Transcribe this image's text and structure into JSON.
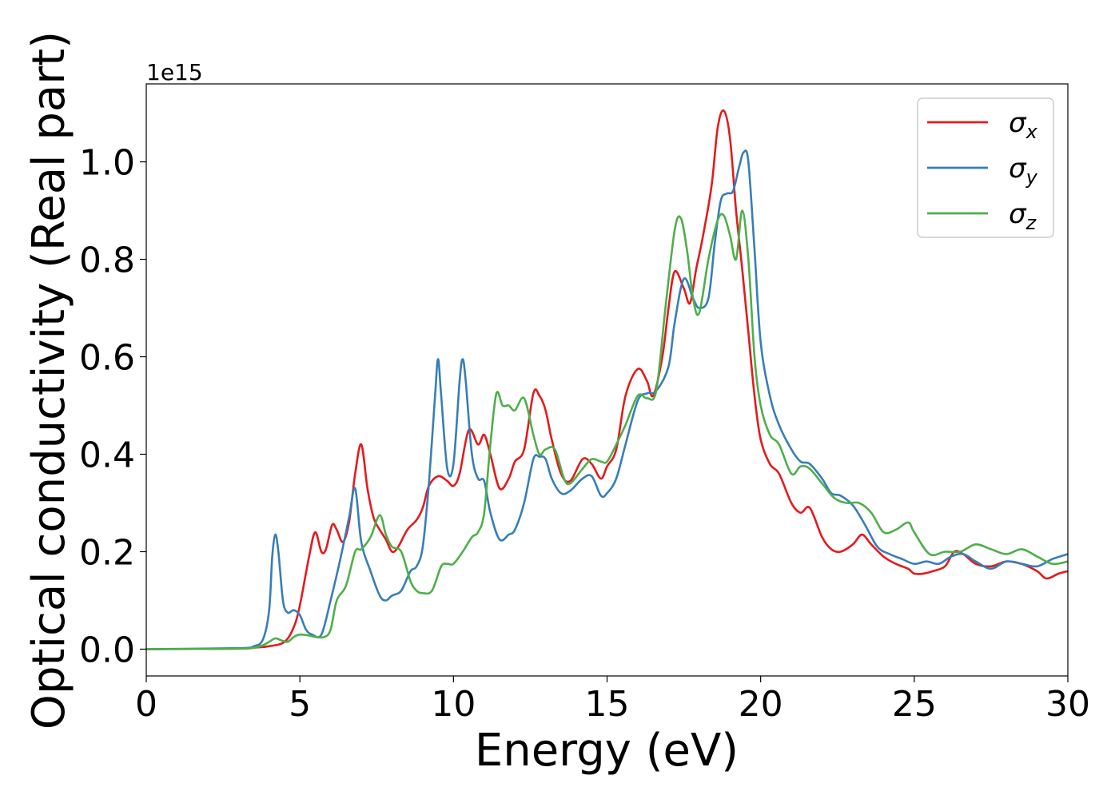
{
  "chart_data": {
    "type": "line",
    "title": "",
    "xlabel": "Energy (eV)",
    "ylabel": "Optical conductivity (Real part)",
    "y_offset_label": "1e15",
    "xlim": [
      0,
      30
    ],
    "ylim": [
      -0.055,
      1.16
    ],
    "xticks": [
      0,
      5,
      10,
      15,
      20,
      25,
      30
    ],
    "xtick_labels": [
      "0",
      "5",
      "10",
      "15",
      "20",
      "25",
      "30"
    ],
    "yticks": [
      0.0,
      0.2,
      0.4,
      0.6,
      0.8,
      1.0
    ],
    "ytick_labels": [
      "0.0",
      "0.2",
      "0.4",
      "0.6",
      "0.8",
      "1.0"
    ],
    "grid": false,
    "legend_position": "top-right",
    "series": [
      {
        "name": "σx",
        "symbol": "σ",
        "subscript": "x",
        "color": "#e41a1c",
        "x": [
          0,
          3.0,
          3.5,
          4.0,
          4.5,
          4.8,
          5.0,
          5.3,
          5.5,
          5.7,
          5.85,
          6.05,
          6.2,
          6.4,
          6.6,
          6.8,
          7.0,
          7.2,
          7.4,
          7.6,
          7.8,
          8.0,
          8.2,
          8.5,
          8.8,
          9.0,
          9.2,
          9.5,
          9.8,
          10.0,
          10.2,
          10.5,
          10.8,
          11.0,
          11.2,
          11.5,
          11.8,
          12.0,
          12.3,
          12.6,
          12.8,
          13.0,
          13.2,
          13.5,
          13.8,
          14.2,
          14.5,
          14.8,
          15.0,
          15.3,
          15.6,
          16.0,
          16.3,
          16.5,
          16.8,
          17.0,
          17.2,
          17.5,
          17.7,
          17.9,
          18.1,
          18.4,
          18.6,
          18.8,
          19.0,
          19.2,
          19.4,
          19.6,
          19.8,
          20.0,
          20.3,
          20.6,
          21.0,
          21.3,
          21.6,
          22.0,
          22.3,
          22.6,
          23.0,
          23.3,
          23.6,
          24.0,
          24.4,
          24.8,
          25.0,
          25.3,
          25.6,
          26.0,
          26.3,
          26.6,
          27.0,
          27.5,
          28.0,
          28.5,
          29.0,
          29.3,
          29.7,
          30.0
        ],
        "y": [
          0,
          0.001,
          0.003,
          0.006,
          0.015,
          0.045,
          0.09,
          0.19,
          0.24,
          0.2,
          0.205,
          0.255,
          0.245,
          0.22,
          0.26,
          0.36,
          0.42,
          0.33,
          0.27,
          0.245,
          0.225,
          0.2,
          0.21,
          0.245,
          0.265,
          0.29,
          0.335,
          0.355,
          0.345,
          0.335,
          0.36,
          0.45,
          0.42,
          0.44,
          0.4,
          0.33,
          0.35,
          0.385,
          0.41,
          0.525,
          0.52,
          0.49,
          0.43,
          0.36,
          0.345,
          0.39,
          0.38,
          0.35,
          0.375,
          0.41,
          0.52,
          0.575,
          0.55,
          0.52,
          0.6,
          0.7,
          0.775,
          0.74,
          0.71,
          0.78,
          0.84,
          0.95,
          1.07,
          1.105,
          1.05,
          0.9,
          0.78,
          0.65,
          0.52,
          0.43,
          0.38,
          0.36,
          0.3,
          0.28,
          0.29,
          0.23,
          0.205,
          0.2,
          0.215,
          0.235,
          0.215,
          0.19,
          0.175,
          0.165,
          0.155,
          0.155,
          0.16,
          0.17,
          0.2,
          0.195,
          0.175,
          0.17,
          0.18,
          0.175,
          0.16,
          0.145,
          0.155,
          0.16
        ]
      },
      {
        "name": "σy",
        "symbol": "σ",
        "subscript": "y",
        "color": "#377eb8",
        "x": [
          0,
          3.0,
          3.5,
          3.8,
          4.0,
          4.1,
          4.2,
          4.3,
          4.45,
          4.6,
          4.8,
          5.0,
          5.2,
          5.4,
          5.7,
          6.0,
          6.3,
          6.6,
          6.8,
          7.0,
          7.3,
          7.6,
          7.8,
          8.0,
          8.3,
          8.6,
          8.8,
          9.0,
          9.2,
          9.4,
          9.5,
          9.6,
          9.8,
          10.0,
          10.2,
          10.3,
          10.4,
          10.6,
          10.8,
          11.0,
          11.2,
          11.5,
          11.8,
          12.0,
          12.3,
          12.6,
          12.8,
          13.0,
          13.2,
          13.5,
          13.8,
          14.2,
          14.5,
          14.8,
          15.0,
          15.3,
          15.6,
          16.0,
          16.3,
          16.6,
          17.0,
          17.2,
          17.5,
          17.8,
          18.0,
          18.3,
          18.5,
          18.7,
          18.9,
          19.1,
          19.3,
          19.45,
          19.6,
          19.8,
          20.0,
          20.3,
          20.6,
          21.0,
          21.3,
          21.6,
          22.0,
          22.3,
          22.6,
          23.0,
          23.4,
          23.8,
          24.2,
          24.6,
          25.0,
          25.4,
          25.8,
          26.2,
          26.6,
          27.0,
          27.5,
          28.0,
          28.5,
          29.0,
          29.5,
          30.0
        ],
        "y": [
          0,
          0.002,
          0.006,
          0.02,
          0.08,
          0.19,
          0.235,
          0.2,
          0.1,
          0.075,
          0.08,
          0.07,
          0.04,
          0.03,
          0.03,
          0.1,
          0.18,
          0.27,
          0.33,
          0.22,
          0.16,
          0.11,
          0.1,
          0.11,
          0.12,
          0.16,
          0.17,
          0.21,
          0.34,
          0.52,
          0.595,
          0.52,
          0.37,
          0.38,
          0.55,
          0.595,
          0.55,
          0.4,
          0.35,
          0.345,
          0.28,
          0.225,
          0.235,
          0.245,
          0.3,
          0.39,
          0.395,
          0.39,
          0.35,
          0.32,
          0.325,
          0.35,
          0.355,
          0.315,
          0.32,
          0.35,
          0.42,
          0.51,
          0.525,
          0.53,
          0.58,
          0.67,
          0.76,
          0.72,
          0.7,
          0.72,
          0.83,
          0.92,
          0.935,
          0.94,
          0.99,
          1.02,
          1.0,
          0.82,
          0.63,
          0.52,
          0.46,
          0.41,
          0.385,
          0.38,
          0.35,
          0.32,
          0.315,
          0.295,
          0.255,
          0.21,
          0.195,
          0.185,
          0.175,
          0.18,
          0.175,
          0.19,
          0.195,
          0.18,
          0.165,
          0.18,
          0.175,
          0.17,
          0.185,
          0.195
        ]
      },
      {
        "name": "σz",
        "symbol": "σ",
        "subscript": "z",
        "color": "#4daf4a",
        "x": [
          0,
          3.0,
          3.5,
          3.8,
          4.0,
          4.2,
          4.4,
          4.6,
          4.8,
          5.0,
          5.3,
          5.5,
          5.8,
          6.0,
          6.2,
          6.5,
          6.8,
          7.0,
          7.3,
          7.6,
          7.8,
          8.0,
          8.3,
          8.6,
          8.8,
          9.0,
          9.3,
          9.6,
          9.8,
          10.0,
          10.3,
          10.6,
          10.8,
          11.0,
          11.2,
          11.4,
          11.6,
          11.8,
          12.0,
          12.3,
          12.6,
          12.8,
          13.0,
          13.3,
          13.6,
          13.8,
          14.2,
          14.5,
          14.8,
          15.0,
          15.3,
          15.6,
          16.0,
          16.3,
          16.6,
          16.9,
          17.2,
          17.4,
          17.6,
          17.8,
          18.0,
          18.3,
          18.6,
          18.8,
          19.0,
          19.2,
          19.4,
          19.6,
          19.8,
          20.0,
          20.3,
          20.6,
          21.0,
          21.3,
          21.6,
          22.0,
          22.4,
          22.8,
          23.2,
          23.6,
          24.0,
          24.4,
          24.8,
          25.0,
          25.5,
          26.0,
          26.5,
          27.0,
          27.5,
          28.0,
          28.5,
          29.0,
          29.5,
          30.0
        ],
        "y": [
          0,
          0.001,
          0.003,
          0.008,
          0.015,
          0.022,
          0.018,
          0.015,
          0.025,
          0.03,
          0.028,
          0.025,
          0.025,
          0.04,
          0.1,
          0.13,
          0.2,
          0.205,
          0.23,
          0.275,
          0.235,
          0.21,
          0.2,
          0.14,
          0.12,
          0.115,
          0.12,
          0.17,
          0.175,
          0.175,
          0.2,
          0.23,
          0.24,
          0.28,
          0.42,
          0.525,
          0.5,
          0.5,
          0.49,
          0.515,
          0.44,
          0.4,
          0.41,
          0.41,
          0.35,
          0.34,
          0.37,
          0.39,
          0.385,
          0.385,
          0.42,
          0.46,
          0.52,
          0.515,
          0.53,
          0.7,
          0.86,
          0.885,
          0.82,
          0.72,
          0.69,
          0.8,
          0.88,
          0.89,
          0.85,
          0.8,
          0.9,
          0.8,
          0.6,
          0.5,
          0.44,
          0.42,
          0.36,
          0.375,
          0.37,
          0.34,
          0.31,
          0.3,
          0.3,
          0.28,
          0.24,
          0.245,
          0.26,
          0.24,
          0.195,
          0.2,
          0.2,
          0.215,
          0.205,
          0.195,
          0.205,
          0.19,
          0.175,
          0.18
        ]
      }
    ]
  }
}
